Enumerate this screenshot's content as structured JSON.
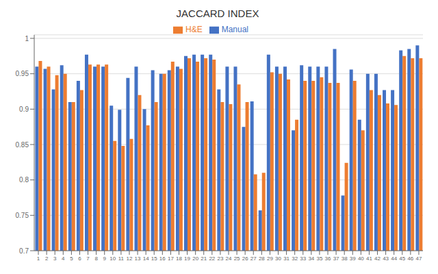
{
  "chart_data": {
    "type": "bar",
    "title": "JACCARD INDEX",
    "categories": [
      "1",
      "2",
      "3",
      "4",
      "5",
      "6",
      "7",
      "8",
      "9",
      "10",
      "11",
      "12",
      "13",
      "14",
      "15",
      "16",
      "17",
      "18",
      "19",
      "20",
      "21",
      "22",
      "23",
      "24",
      "25",
      "26",
      "27",
      "28",
      "29",
      "30",
      "31",
      "32",
      "33",
      "34",
      "35",
      "36",
      "37",
      "38",
      "39",
      "40",
      "41",
      "42",
      "43",
      "44",
      "45",
      "46",
      "47"
    ],
    "series": [
      {
        "name": "Manual",
        "color": "#4472c4",
        "values": [
          0.96,
          0.957,
          0.928,
          0.962,
          0.91,
          0.94,
          0.977,
          0.96,
          0.96,
          0.905,
          0.899,
          0.944,
          0.96,
          0.9,
          0.955,
          0.95,
          0.955,
          0.96,
          0.975,
          0.977,
          0.977,
          0.977,
          0.928,
          0.96,
          0.96,
          0.875,
          0.911,
          0.757,
          0.977,
          0.96,
          0.96,
          0.87,
          0.962,
          0.96,
          0.96,
          0.96,
          0.985,
          0.778,
          0.956,
          0.885,
          0.95,
          0.95,
          0.927,
          0.927,
          0.983,
          0.985,
          0.99
        ]
      },
      {
        "name": "H&E",
        "color": "#ed7d31",
        "values": [
          0.968,
          0.96,
          0.948,
          0.95,
          0.91,
          0.927,
          0.963,
          0.963,
          0.963,
          0.855,
          0.848,
          0.858,
          0.92,
          0.877,
          0.91,
          0.95,
          0.967,
          0.957,
          0.972,
          0.967,
          0.972,
          0.97,
          0.91,
          0.907,
          0.935,
          0.91,
          0.808,
          0.81,
          0.952,
          0.95,
          0.942,
          0.885,
          0.94,
          0.94,
          0.945,
          0.937,
          0.937,
          0.824,
          0.94,
          0.87,
          0.927,
          0.92,
          0.908,
          0.906,
          0.975,
          0.972,
          0.972
        ]
      }
    ],
    "ylim": [
      0.7,
      1.005
    ],
    "yticks": [
      0.7,
      0.75,
      0.8,
      0.85,
      0.9,
      0.95,
      1
    ],
    "grid": true,
    "legend": "top"
  }
}
